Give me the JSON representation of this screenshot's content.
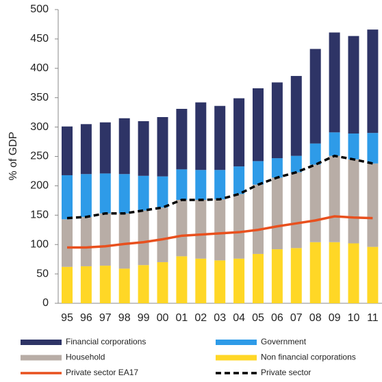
{
  "chart_data": {
    "type": "bar",
    "stacked": true,
    "ylabel": "% of GDP",
    "categories": [
      "95",
      "96",
      "97",
      "98",
      "99",
      "00",
      "01",
      "02",
      "03",
      "04",
      "05",
      "06",
      "07",
      "08",
      "09",
      "10",
      "11"
    ],
    "series": [
      {
        "name": "Non financial corporations",
        "color": "#ffd726",
        "values": [
          62,
          63,
          64,
          59,
          65,
          70,
          80,
          76,
          73,
          76,
          84,
          92,
          94,
          104,
          104,
          102,
          96
        ]
      },
      {
        "name": "Household",
        "color": "#b8ada6",
        "values": [
          81,
          84,
          89,
          94,
          93,
          93,
          96,
          100,
          104,
          110,
          118,
          122,
          129,
          132,
          147,
          143,
          142
        ]
      },
      {
        "name": "Government",
        "color": "#2e9be8",
        "values": [
          75,
          73,
          68,
          67,
          59,
          53,
          52,
          51,
          50,
          47,
          40,
          33,
          28,
          36,
          40,
          44,
          52
        ]
      },
      {
        "name": "Financial corporations",
        "color": "#2e3466",
        "values": [
          83,
          85,
          87,
          95,
          93,
          101,
          103,
          115,
          109,
          116,
          124,
          129,
          136,
          161,
          170,
          166,
          176
        ]
      },
      {
        "name": "Private sector EA17",
        "type": "line",
        "color": "#e8501e",
        "dashed": false,
        "values": [
          95,
          95,
          97,
          101,
          104,
          109,
          115,
          117,
          119,
          121,
          125,
          131,
          136,
          141,
          148,
          146,
          145
        ]
      },
      {
        "name": "Private sector",
        "type": "line",
        "color": "#000000",
        "dashed": true,
        "values": [
          145,
          147,
          153,
          153,
          158,
          163,
          176,
          176,
          177,
          186,
          202,
          214,
          223,
          236,
          251,
          245,
          238
        ]
      }
    ],
    "ylim": [
      0,
      500
    ],
    "yticks": [
      0,
      50,
      100,
      150,
      200,
      250,
      300,
      350,
      400,
      450,
      500
    ]
  }
}
